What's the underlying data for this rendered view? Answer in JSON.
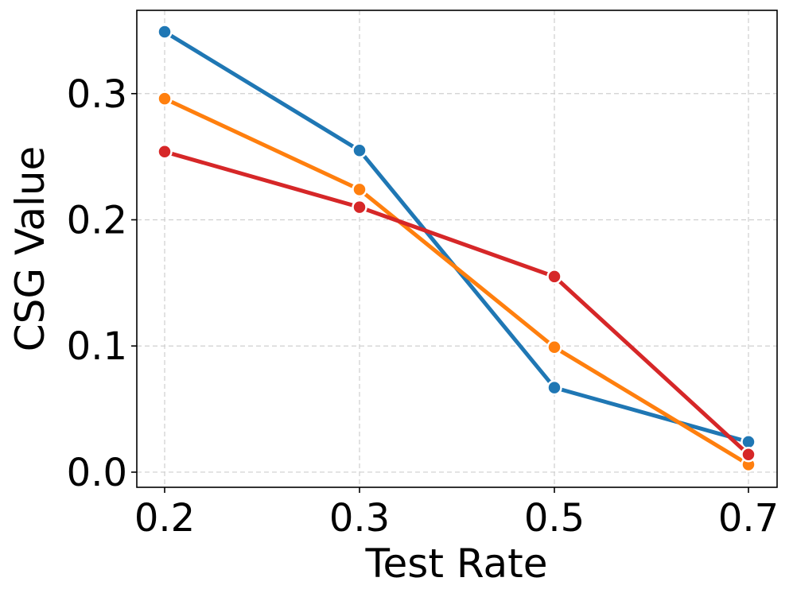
{
  "chart_data": {
    "type": "line",
    "title": "",
    "xlabel": "Test Rate",
    "ylabel": "CSG Value",
    "categories": [
      "0.2",
      "0.3",
      "0.5",
      "0.7"
    ],
    "yticks": [
      "0.0",
      "0.1",
      "0.2",
      "0.3"
    ],
    "ylim": [
      -0.012,
      0.366
    ],
    "grid": true,
    "series": [
      {
        "color": "#1f77b4",
        "values": [
          0.349,
          0.255,
          0.067,
          0.024
        ]
      },
      {
        "color": "#ff7f0e",
        "values": [
          0.296,
          0.224,
          0.099,
          0.006
        ]
      },
      {
        "color": "#d62728",
        "values": [
          0.254,
          0.21,
          0.155,
          0.014
        ]
      }
    ]
  }
}
